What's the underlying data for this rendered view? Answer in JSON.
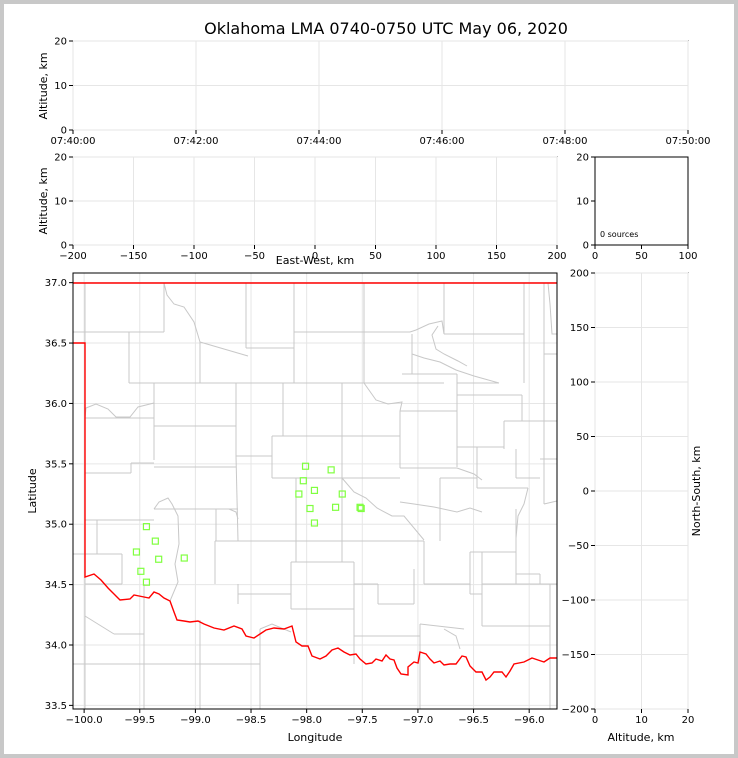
{
  "title": "Oklahoma LMA 0740-0750 UTC May 06, 2020",
  "colors": {
    "state_border": "#ff0000",
    "county_lines": "#c8c8c8",
    "source_marker": "#80ff40",
    "grid": "#e6e6e6"
  },
  "chart_data": [
    {
      "id": "time-altitude",
      "type": "scatter",
      "ylabel": "Altitude, km",
      "xlabel": "",
      "x_ticks": [
        "07:40:00",
        "07:42:00",
        "07:44:00",
        "07:46:00",
        "07:48:00",
        "07:50:00"
      ],
      "y_ticks": [
        0,
        10,
        20
      ],
      "ylim": [
        0,
        20
      ],
      "grid": true,
      "points": []
    },
    {
      "id": "eastwest-altitude",
      "type": "scatter",
      "xlabel": "East-West, km",
      "ylabel": "Altitude, km",
      "xlim": [
        -200,
        200
      ],
      "ylim": [
        0,
        20
      ],
      "x_ticks": [
        -200,
        -150,
        -100,
        -50,
        0,
        50,
        100,
        150,
        200
      ],
      "y_ticks": [
        0,
        10,
        20
      ],
      "grid": true,
      "points": []
    },
    {
      "id": "altitude-histogram",
      "type": "bar",
      "xlim": [
        0,
        100
      ],
      "ylim": [
        0,
        20
      ],
      "x_ticks": [
        0,
        50,
        100
      ],
      "y_ticks": [
        0,
        10,
        20
      ],
      "annotation": "0 sources",
      "values": []
    },
    {
      "id": "plan-view-map",
      "type": "scatter",
      "xlabel": "Longitude",
      "ylabel": "Latitude",
      "xlim": [
        -100.1,
        -95.75
      ],
      "ylim": [
        33.47,
        37.08
      ],
      "x_ticks": [
        "-100.0",
        "-99.5",
        "-99.0",
        "-98.5",
        "-98.0",
        "-97.5",
        "-97.0",
        "-96.5",
        "-96.0"
      ],
      "y_ticks": [
        "33.5",
        "34.0",
        "34.5",
        "35.0",
        "35.5",
        "36.0",
        "36.5",
        "37.0"
      ],
      "grid": true,
      "points": [
        {
          "lon": -98.01,
          "lat": 35.48
        },
        {
          "lon": -97.78,
          "lat": 35.45
        },
        {
          "lon": -98.03,
          "lat": 35.36
        },
        {
          "lon": -97.93,
          "lat": 35.28
        },
        {
          "lon": -98.07,
          "lat": 35.25
        },
        {
          "lon": -97.68,
          "lat": 35.25
        },
        {
          "lon": -97.97,
          "lat": 35.13
        },
        {
          "lon": -97.74,
          "lat": 35.14
        },
        {
          "lon": -97.51,
          "lat": 35.13
        },
        {
          "lon": -97.52,
          "lat": 35.14
        },
        {
          "lon": -97.93,
          "lat": 35.01
        },
        {
          "lon": -99.44,
          "lat": 34.98
        },
        {
          "lon": -99.36,
          "lat": 34.86
        },
        {
          "lon": -99.53,
          "lat": 34.77
        },
        {
          "lon": -99.1,
          "lat": 34.72
        },
        {
          "lon": -99.33,
          "lat": 34.71
        },
        {
          "lon": -99.49,
          "lat": 34.61
        },
        {
          "lon": -99.44,
          "lat": 34.52
        }
      ]
    },
    {
      "id": "altitude-northsouth",
      "type": "scatter",
      "xlabel": "Altitude, km",
      "ylabel": "North-South, km",
      "xlim": [
        0,
        20
      ],
      "ylim": [
        -200,
        200
      ],
      "x_ticks": [
        0,
        10,
        20
      ],
      "y_ticks": [
        200,
        150,
        100,
        50,
        0,
        -50,
        -100,
        -150,
        -200
      ],
      "grid": true,
      "points": []
    }
  ]
}
